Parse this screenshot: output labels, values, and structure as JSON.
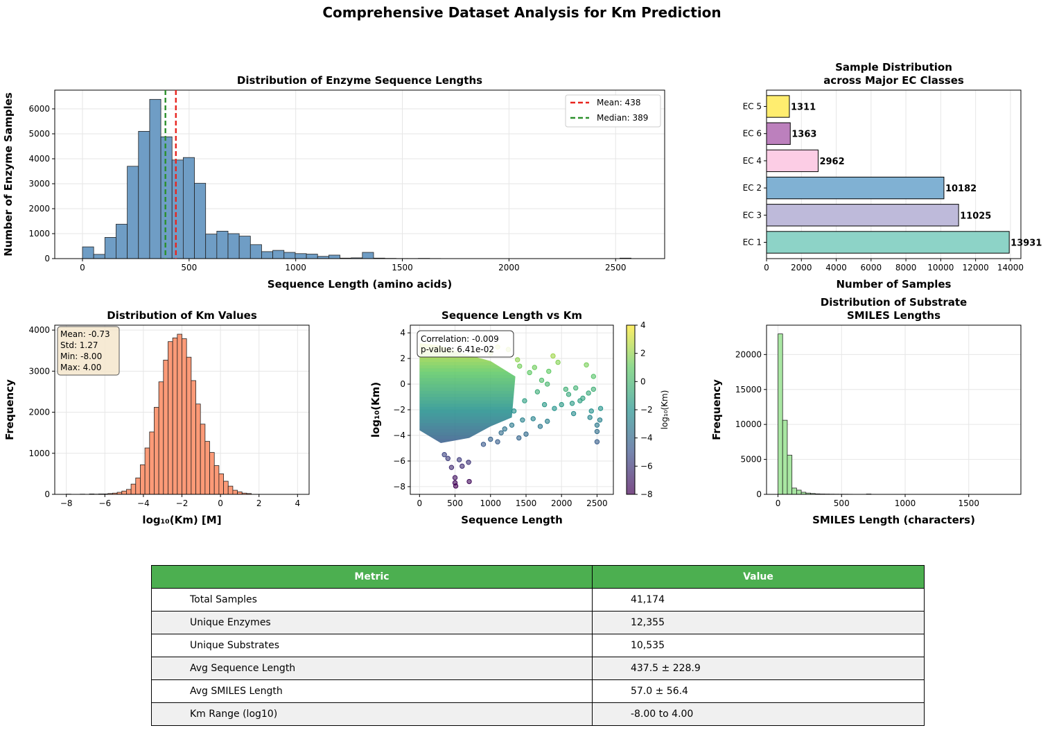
{
  "suptitle": "Comprehensive Dataset Analysis for Km Prediction",
  "chart_data": [
    {
      "id": "seq_hist",
      "type": "bar",
      "title": "Distribution of Enzyme Sequence Lengths",
      "xlabel": "Sequence Length (amino acids)",
      "ylabel": "Number of Enzyme Samples",
      "xlim": [
        -130,
        2730
      ],
      "ylim": [
        0,
        6750
      ],
      "xticks": [
        0,
        500,
        1000,
        1500,
        2000,
        2500
      ],
      "yticks": [
        0,
        1000,
        2000,
        3000,
        4000,
        5000,
        6000
      ],
      "bin_start": 0,
      "bin_width": 52.5,
      "counts": [
        470,
        170,
        850,
        1380,
        3700,
        5100,
        6380,
        4880,
        3950,
        4050,
        3020,
        980,
        1100,
        1000,
        900,
        560,
        280,
        330,
        250,
        200,
        180,
        90,
        140,
        20,
        30,
        250,
        20,
        10,
        5,
        5,
        10,
        5,
        0,
        0,
        0,
        0,
        0,
        0,
        0,
        0,
        0,
        0,
        0,
        0,
        0,
        0,
        0,
        0,
        20,
        0
      ],
      "color": "#6f9dc5",
      "vlines": [
        {
          "x": 438,
          "color": "#e8251f",
          "label": "Mean: 438"
        },
        {
          "x": 389,
          "color": "#2b8f2b",
          "label": "Median: 389"
        }
      ],
      "legend_position": "upper right",
      "grid": true
    },
    {
      "id": "ec_bar",
      "type": "bar",
      "orientation": "horizontal",
      "title": [
        "Sample Distribution",
        "across Major EC Classes"
      ],
      "xlabel": "Number of Samples",
      "ylabel": "",
      "xlim": [
        0,
        14600
      ],
      "xticks": [
        0,
        2000,
        4000,
        6000,
        8000,
        10000,
        12000,
        14000
      ],
      "categories": [
        "EC 1",
        "EC 3",
        "EC 2",
        "EC 4",
        "EC 6",
        "EC 5"
      ],
      "values": [
        13931,
        11025,
        10182,
        2962,
        1363,
        1311
      ],
      "colors": [
        "#8dd3c7",
        "#bebada",
        "#80b1d3",
        "#fccde5",
        "#bc80bd",
        "#ffed6f"
      ],
      "grid": true
    },
    {
      "id": "km_hist",
      "type": "bar",
      "title": "Distribution of Km Values",
      "xlabel": "log₁₀(Km) [M]",
      "ylabel": "Frequency",
      "xlim": [
        -8.6,
        4.6
      ],
      "ylim": [
        0,
        4120
      ],
      "xticks": [
        -8,
        -6,
        -4,
        -2,
        0,
        2,
        4
      ],
      "yticks": [
        0,
        1000,
        2000,
        3000,
        4000
      ],
      "bin_start": -8,
      "bin_width": 0.24,
      "counts": [
        5,
        0,
        0,
        5,
        0,
        10,
        5,
        10,
        10,
        20,
        30,
        50,
        80,
        120,
        250,
        400,
        720,
        1130,
        1520,
        2120,
        2740,
        3270,
        3720,
        3810,
        3900,
        3790,
        3340,
        2770,
        2200,
        1710,
        1290,
        1020,
        700,
        500,
        320,
        200,
        100,
        60,
        30,
        20
      ],
      "color": "#fc9a77",
      "stats_box": [
        "Mean: -0.73",
        "Std: 1.27",
        "Min: -8.00",
        "Max: 4.00"
      ],
      "grid": true
    },
    {
      "id": "scatter",
      "type": "scatter",
      "title": "Sequence Length vs Km",
      "xlabel": "Sequence Length",
      "ylabel": "log₁₀(Km)",
      "xlim": [
        -130,
        2730
      ],
      "ylim": [
        -8.6,
        4.6
      ],
      "xticks": [
        0,
        500,
        1000,
        1500,
        2000,
        2500
      ],
      "yticks": [
        -8,
        -6,
        -4,
        -2,
        0,
        2,
        4
      ],
      "colorbar": {
        "label": "log₁₀(Km)",
        "range": [
          -8,
          4
        ],
        "ticks": [
          -8,
          -6,
          -4,
          -2,
          0,
          2,
          4
        ],
        "colormap": "viridis"
      },
      "annotation": [
        "Correlation: -0.009",
        "p-value: 6.41e-02"
      ],
      "points": [
        [
          500,
          -7.7
        ],
        [
          500,
          -7.3
        ],
        [
          510,
          -7.95
        ],
        [
          700,
          -7.6
        ],
        [
          690,
          -6.1
        ],
        [
          450,
          -6.5
        ],
        [
          600,
          -6.4
        ],
        [
          350,
          -5.5
        ],
        [
          400,
          -5.8
        ],
        [
          560,
          -5.9
        ],
        [
          900,
          -4.7
        ],
        [
          1000,
          -4.3
        ],
        [
          1100,
          -4.5
        ],
        [
          1200,
          -3.5
        ],
        [
          1300,
          -3.2
        ],
        [
          1400,
          -4.2
        ],
        [
          1500,
          -3.9
        ],
        [
          1600,
          -2.7
        ],
        [
          1700,
          -3.3
        ],
        [
          1800,
          -2.9
        ],
        [
          1900,
          -1.9
        ],
        [
          1950,
          1.7
        ],
        [
          1880,
          2.2
        ],
        [
          2000,
          -1.6
        ],
        [
          2100,
          -0.8
        ],
        [
          2200,
          -0.3
        ],
        [
          2300,
          -1.1
        ],
        [
          2400,
          -2.6
        ],
        [
          2420,
          -2.1
        ],
        [
          2450,
          -0.4
        ],
        [
          2500,
          -3.2
        ],
        [
          2500,
          -3.7
        ],
        [
          2500,
          -4.5
        ],
        [
          2540,
          -2.8
        ],
        [
          2550,
          -1.9
        ],
        [
          2450,
          0.6
        ],
        [
          2350,
          1.5
        ],
        [
          2380,
          -0.7
        ],
        [
          2060,
          -0.4
        ],
        [
          2150,
          -1.5
        ],
        [
          2170,
          -2.3
        ],
        [
          2260,
          -1.3
        ],
        [
          1550,
          0.9
        ],
        [
          1620,
          1.3
        ],
        [
          1660,
          -0.6
        ],
        [
          1720,
          0.3
        ],
        [
          1760,
          -1.6
        ],
        [
          1800,
          0.0
        ],
        [
          1820,
          1.0
        ],
        [
          1380,
          1.9
        ],
        [
          1250,
          2.7
        ],
        [
          1100,
          2.9
        ],
        [
          1000,
          2.4
        ],
        [
          1410,
          1.4
        ],
        [
          1330,
          -2.1
        ],
        [
          1450,
          -2.8
        ],
        [
          1480,
          -1.3
        ],
        [
          1150,
          -3.8
        ]
      ],
      "grid": true
    },
    {
      "id": "smiles_hist",
      "type": "bar",
      "title": [
        "Distribution of Substrate",
        "SMILES Lengths"
      ],
      "xlabel": "SMILES Length (characters)",
      "ylabel": "Frequency",
      "xlim": [
        -90,
        1910
      ],
      "ylim": [
        0,
        24200
      ],
      "xticks": [
        0,
        500,
        1000,
        1500
      ],
      "yticks": [
        0,
        5000,
        10000,
        15000,
        20000
      ],
      "bin_start": 0,
      "bin_width": 36.6,
      "counts": [
        22950,
        10600,
        5600,
        900,
        600,
        300,
        180,
        120,
        70,
        50,
        40,
        30,
        25,
        20,
        20,
        15,
        10,
        10,
        10,
        50,
        10,
        5,
        5,
        5,
        5,
        5,
        5,
        5,
        5,
        5,
        5,
        5,
        5,
        5,
        5,
        5,
        5,
        5,
        5,
        5,
        5,
        5,
        5,
        5,
        5,
        5,
        5,
        5,
        5,
        5
      ],
      "color": "#a8e6a2",
      "grid": true
    }
  ],
  "table": {
    "headers": [
      "Metric",
      "Value"
    ],
    "rows": [
      [
        "Total Samples",
        "41,174"
      ],
      [
        "Unique Enzymes",
        "12,355"
      ],
      [
        "Unique Substrates",
        "10,535"
      ],
      [
        "Avg Sequence Length",
        "437.5 ± 228.9"
      ],
      [
        "Avg SMILES Length",
        "57.0 ± 56.4"
      ],
      [
        "Km Range (log10)",
        "-8.00 to 4.00"
      ]
    ]
  }
}
